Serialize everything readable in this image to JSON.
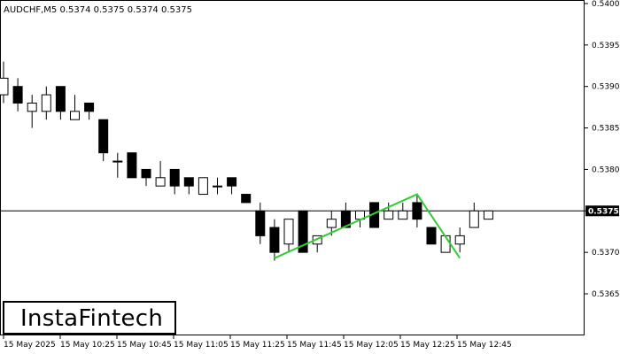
{
  "header": {
    "symbol_title": "AUDCHF,M5  0.5374 0.5375 0.5374 0.5375"
  },
  "logo": {
    "text": "InstaFintech"
  },
  "colors": {
    "bullish_fill": "#ffffff",
    "bearish_fill": "#000000",
    "candle_stroke": "#000000",
    "pattern_line": "#33cc33",
    "price_tag_bg": "#000000",
    "current_price_line": "#000000"
  },
  "chart_data": {
    "type": "candlestick",
    "title": "AUDCHF,M5  0.5374 0.5375 0.5374 0.5375",
    "ylim": [
      0.536,
      0.54
    ],
    "y_ticks": [
      "0.5400",
      "0.5395",
      "0.5390",
      "0.5385",
      "0.5380",
      "0.5375",
      "0.5370",
      "0.5365"
    ],
    "x_ticks": [
      "15 May 2025",
      "15 May 10:25",
      "15 May 10:45",
      "15 May 11:05",
      "15 May 11:25",
      "15 May 11:45",
      "15 May 12:05",
      "15 May 12:25",
      "15 May 12:45"
    ],
    "current_price": "0.5375",
    "current_price_value": 0.5375,
    "candles": [
      {
        "o": 0.5389,
        "h": 0.5393,
        "l": 0.5388,
        "c": 0.5391
      },
      {
        "o": 0.539,
        "h": 0.5391,
        "l": 0.5387,
        "c": 0.5388
      },
      {
        "o": 0.5387,
        "h": 0.5389,
        "l": 0.5385,
        "c": 0.5388
      },
      {
        "o": 0.5387,
        "h": 0.539,
        "l": 0.5386,
        "c": 0.5389
      },
      {
        "o": 0.539,
        "h": 0.539,
        "l": 0.5386,
        "c": 0.5387
      },
      {
        "o": 0.5386,
        "h": 0.5389,
        "l": 0.5386,
        "c": 0.5387
      },
      {
        "o": 0.5388,
        "h": 0.5388,
        "l": 0.5386,
        "c": 0.5387
      },
      {
        "o": 0.5386,
        "h": 0.5386,
        "l": 0.5381,
        "c": 0.5382
      },
      {
        "o": 0.5381,
        "h": 0.5382,
        "l": 0.5379,
        "c": 0.5381
      },
      {
        "o": 0.5382,
        "h": 0.5382,
        "l": 0.5379,
        "c": 0.5379
      },
      {
        "o": 0.538,
        "h": 0.538,
        "l": 0.5378,
        "c": 0.5379
      },
      {
        "o": 0.5378,
        "h": 0.5381,
        "l": 0.5378,
        "c": 0.5379
      },
      {
        "o": 0.538,
        "h": 0.538,
        "l": 0.5377,
        "c": 0.5378
      },
      {
        "o": 0.5379,
        "h": 0.5379,
        "l": 0.5377,
        "c": 0.5378
      },
      {
        "o": 0.5377,
        "h": 0.5379,
        "l": 0.5377,
        "c": 0.5379
      },
      {
        "o": 0.5378,
        "h": 0.5379,
        "l": 0.5377,
        "c": 0.5378
      },
      {
        "o": 0.5379,
        "h": 0.5379,
        "l": 0.5377,
        "c": 0.5378
      },
      {
        "o": 0.5377,
        "h": 0.5377,
        "l": 0.5376,
        "c": 0.5376
      },
      {
        "o": 0.5375,
        "h": 0.5376,
        "l": 0.5371,
        "c": 0.5372
      },
      {
        "o": 0.5373,
        "h": 0.5374,
        "l": 0.5369,
        "c": 0.537
      },
      {
        "o": 0.5371,
        "h": 0.5374,
        "l": 0.537,
        "c": 0.5374
      },
      {
        "o": 0.5375,
        "h": 0.5375,
        "l": 0.537,
        "c": 0.537
      },
      {
        "o": 0.5371,
        "h": 0.5372,
        "l": 0.537,
        "c": 0.5372
      },
      {
        "o": 0.5373,
        "h": 0.5375,
        "l": 0.5372,
        "c": 0.5374
      },
      {
        "o": 0.5375,
        "h": 0.5376,
        "l": 0.5373,
        "c": 0.5373
      },
      {
        "o": 0.5374,
        "h": 0.5375,
        "l": 0.5373,
        "c": 0.5375
      },
      {
        "o": 0.5376,
        "h": 0.5376,
        "l": 0.5373,
        "c": 0.5373
      },
      {
        "o": 0.5374,
        "h": 0.5376,
        "l": 0.5374,
        "c": 0.5375
      },
      {
        "o": 0.5374,
        "h": 0.5376,
        "l": 0.5374,
        "c": 0.5375
      },
      {
        "o": 0.5376,
        "h": 0.5377,
        "l": 0.5373,
        "c": 0.5374
      },
      {
        "o": 0.5373,
        "h": 0.5373,
        "l": 0.5371,
        "c": 0.5371
      },
      {
        "o": 0.537,
        "h": 0.5372,
        "l": 0.537,
        "c": 0.5372
      },
      {
        "o": 0.5371,
        "h": 0.5373,
        "l": 0.537,
        "c": 0.5372
      },
      {
        "o": 0.5373,
        "h": 0.5376,
        "l": 0.5373,
        "c": 0.5375
      },
      {
        "o": 0.5374,
        "h": 0.5375,
        "l": 0.5374,
        "c": 0.5375
      }
    ],
    "pattern": {
      "name": "",
      "color": "#33cc33",
      "points": [
        {
          "index": 19,
          "price": 0.53693
        },
        {
          "index": 29,
          "price": 0.5377
        },
        {
          "index": 32,
          "price": 0.53693
        }
      ]
    }
  }
}
